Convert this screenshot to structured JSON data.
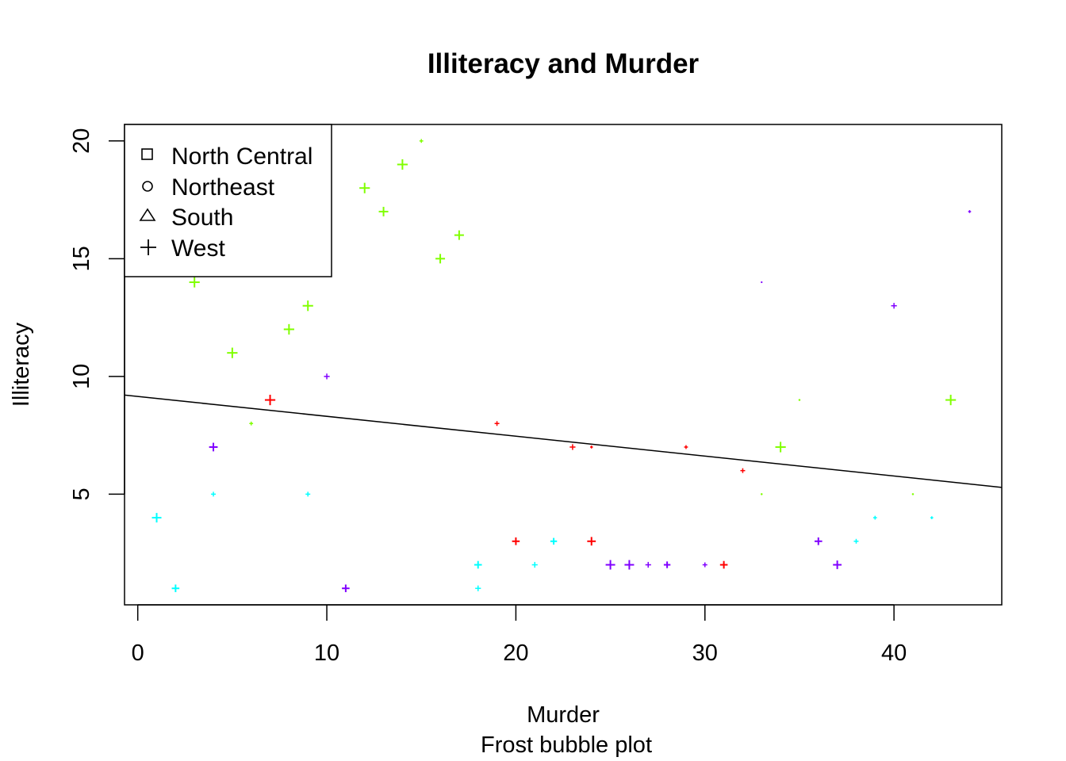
{
  "chart_data": {
    "type": "scatter",
    "title": "Illiteracy and Murder",
    "xlabel": "Murder",
    "sublabel": "Frost bubble plot",
    "ylabel": "Illiteracy",
    "xlim": [
      -0.7,
      45.7
    ],
    "ylim": [
      0.3,
      20.7
    ],
    "x_ticks": [
      0,
      10,
      20,
      30,
      40
    ],
    "y_ticks": [
      5,
      10,
      15,
      20
    ],
    "grid": false,
    "legend": {
      "position": "top-left",
      "entries": [
        {
          "label": "North Central",
          "symbol": "square"
        },
        {
          "label": "Northeast",
          "symbol": "circle"
        },
        {
          "label": "South",
          "symbol": "triangle"
        },
        {
          "label": "West",
          "symbol": "plus"
        }
      ]
    },
    "regression_line": {
      "intercept": 9.15,
      "slope": -0.0845
    },
    "colors": {
      "green": "#80ff00",
      "red": "#ff0000",
      "cyan": "#00ffff",
      "purple": "#8000ff"
    },
    "points": [
      {
        "x": 1,
        "y": 4,
        "color": "cyan",
        "size": 1.0
      },
      {
        "x": 2,
        "y": 1,
        "color": "cyan",
        "size": 0.8
      },
      {
        "x": 3,
        "y": 14,
        "color": "green",
        "size": 1.1
      },
      {
        "x": 4,
        "y": 7,
        "color": "purple",
        "size": 0.9
      },
      {
        "x": 4,
        "y": 5,
        "color": "cyan",
        "size": 0.5
      },
      {
        "x": 5,
        "y": 11,
        "color": "green",
        "size": 1.1
      },
      {
        "x": 6,
        "y": 8,
        "color": "green",
        "size": 0.4
      },
      {
        "x": 7,
        "y": 9,
        "color": "red",
        "size": 1.1
      },
      {
        "x": 8,
        "y": 12,
        "color": "green",
        "size": 1.1
      },
      {
        "x": 9,
        "y": 13,
        "color": "green",
        "size": 1.1
      },
      {
        "x": 9,
        "y": 5,
        "color": "cyan",
        "size": 0.5
      },
      {
        "x": 10,
        "y": 10,
        "color": "purple",
        "size": 0.6
      },
      {
        "x": 11,
        "y": 1,
        "color": "purple",
        "size": 0.8
      },
      {
        "x": 12,
        "y": 18,
        "color": "green",
        "size": 1.1
      },
      {
        "x": 13,
        "y": 17,
        "color": "green",
        "size": 1.0
      },
      {
        "x": 14,
        "y": 19,
        "color": "green",
        "size": 1.1
      },
      {
        "x": 15,
        "y": 20,
        "color": "green",
        "size": 0.4
      },
      {
        "x": 16,
        "y": 15,
        "color": "green",
        "size": 1.0
      },
      {
        "x": 17,
        "y": 16,
        "color": "green",
        "size": 1.0
      },
      {
        "x": 18,
        "y": 2,
        "color": "cyan",
        "size": 0.8
      },
      {
        "x": 18,
        "y": 1,
        "color": "cyan",
        "size": 0.6
      },
      {
        "x": 19,
        "y": 8,
        "color": "red",
        "size": 0.5
      },
      {
        "x": 20,
        "y": 3,
        "color": "red",
        "size": 0.8
      },
      {
        "x": 21,
        "y": 2,
        "color": "cyan",
        "size": 0.6
      },
      {
        "x": 22,
        "y": 3,
        "color": "cyan",
        "size": 0.7
      },
      {
        "x": 23,
        "y": 7,
        "color": "red",
        "size": 0.6
      },
      {
        "x": 24,
        "y": 7,
        "color": "red",
        "size": 0.3
      },
      {
        "x": 24,
        "y": 3,
        "color": "red",
        "size": 0.9
      },
      {
        "x": 25,
        "y": 2,
        "color": "purple",
        "size": 1.0
      },
      {
        "x": 26,
        "y": 2,
        "color": "purple",
        "size": 1.0
      },
      {
        "x": 27,
        "y": 2,
        "color": "purple",
        "size": 0.6
      },
      {
        "x": 28,
        "y": 2,
        "color": "purple",
        "size": 0.7
      },
      {
        "x": 29,
        "y": 7,
        "color": "red",
        "size": 0.4
      },
      {
        "x": 30,
        "y": 2,
        "color": "purple",
        "size": 0.5
      },
      {
        "x": 31,
        "y": 2,
        "color": "red",
        "size": 0.8
      },
      {
        "x": 32,
        "y": 6,
        "color": "red",
        "size": 0.5
      },
      {
        "x": 33,
        "y": 14,
        "color": "purple",
        "size": 0.15
      },
      {
        "x": 33,
        "y": 5,
        "color": "green",
        "size": 0.2
      },
      {
        "x": 34,
        "y": 7,
        "color": "green",
        "size": 1.1
      },
      {
        "x": 35,
        "y": 9,
        "color": "green",
        "size": 0.2
      },
      {
        "x": 36,
        "y": 3,
        "color": "purple",
        "size": 0.8
      },
      {
        "x": 37,
        "y": 2,
        "color": "purple",
        "size": 0.9
      },
      {
        "x": 38,
        "y": 3,
        "color": "cyan",
        "size": 0.5
      },
      {
        "x": 39,
        "y": 4,
        "color": "cyan",
        "size": 0.4
      },
      {
        "x": 40,
        "y": 13,
        "color": "purple",
        "size": 0.6
      },
      {
        "x": 41,
        "y": 5,
        "color": "green",
        "size": 0.2
      },
      {
        "x": 42,
        "y": 4,
        "color": "cyan",
        "size": 0.3
      },
      {
        "x": 43,
        "y": 9,
        "color": "green",
        "size": 1.1
      },
      {
        "x": 44,
        "y": 17,
        "color": "purple",
        "size": 0.3
      }
    ]
  }
}
